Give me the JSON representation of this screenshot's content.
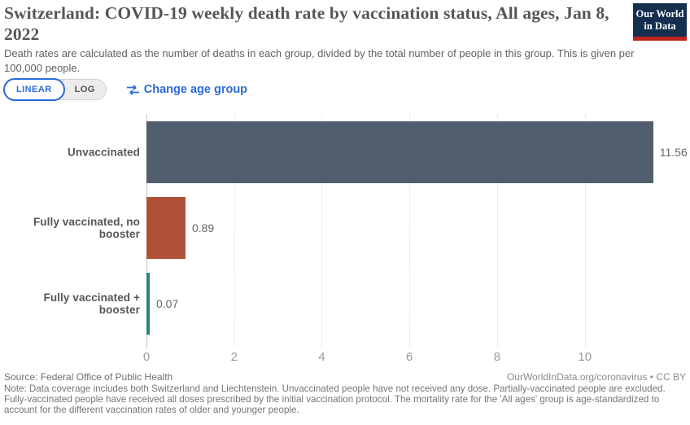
{
  "header": {
    "title": "Switzerland: COVID-19 weekly death rate by vaccination status, All ages, Jan 8, 2022",
    "subtitle": "Death rates are calculated as the number of deaths in each group, divided by the total number of people in this group. This is given per 100,000 people.",
    "logo": {
      "line1": "Our World",
      "line2": "in Data"
    }
  },
  "controls": {
    "scale_toggle": {
      "linear": "LINEAR",
      "log": "LOG",
      "active": "LINEAR"
    },
    "change_age_group": "Change age group"
  },
  "chart_data": {
    "type": "bar",
    "orientation": "horizontal",
    "title": "Switzerland: COVID-19 weekly death rate by vaccination status, All ages, Jan 8, 2022",
    "unit": "weekly deaths per 100,000 people",
    "categories": [
      "Unvaccinated",
      "Fully vaccinated, no booster",
      "Fully vaccinated + booster"
    ],
    "values": [
      11.56,
      0.89,
      0.07
    ],
    "value_labels": [
      "11.56",
      "0.89",
      "0.07"
    ],
    "bar_colors": [
      "#515e6e",
      "#af5139",
      "#2c8576"
    ],
    "x_ticks": [
      0,
      2,
      4,
      6,
      8,
      10
    ],
    "xlim": [
      0,
      12.4
    ],
    "grid": "vertical dotted",
    "legend": "none"
  },
  "footer": {
    "source": "Source: Federal Office of Public Health",
    "attribution": "OurWorldInData.org/coronavirus • CC BY",
    "note": "Note: Data coverage includes both Switzerland and Liechtenstein. Unvaccinated people have not received any dose. Partially-vaccinated people are excluded. Fully-vaccinated people have received all doses prescribed by the initial vaccination protocol. The mortality rate for the 'All ages' group is age-standardized to account for the different vaccination rates of older and younger people."
  },
  "colors": {
    "accent_blue": "#2b6adb",
    "logo_bg": "#15304e",
    "logo_stripe": "#c0241e",
    "title_text": "#555555",
    "axis_text": "#9a9a9a"
  }
}
